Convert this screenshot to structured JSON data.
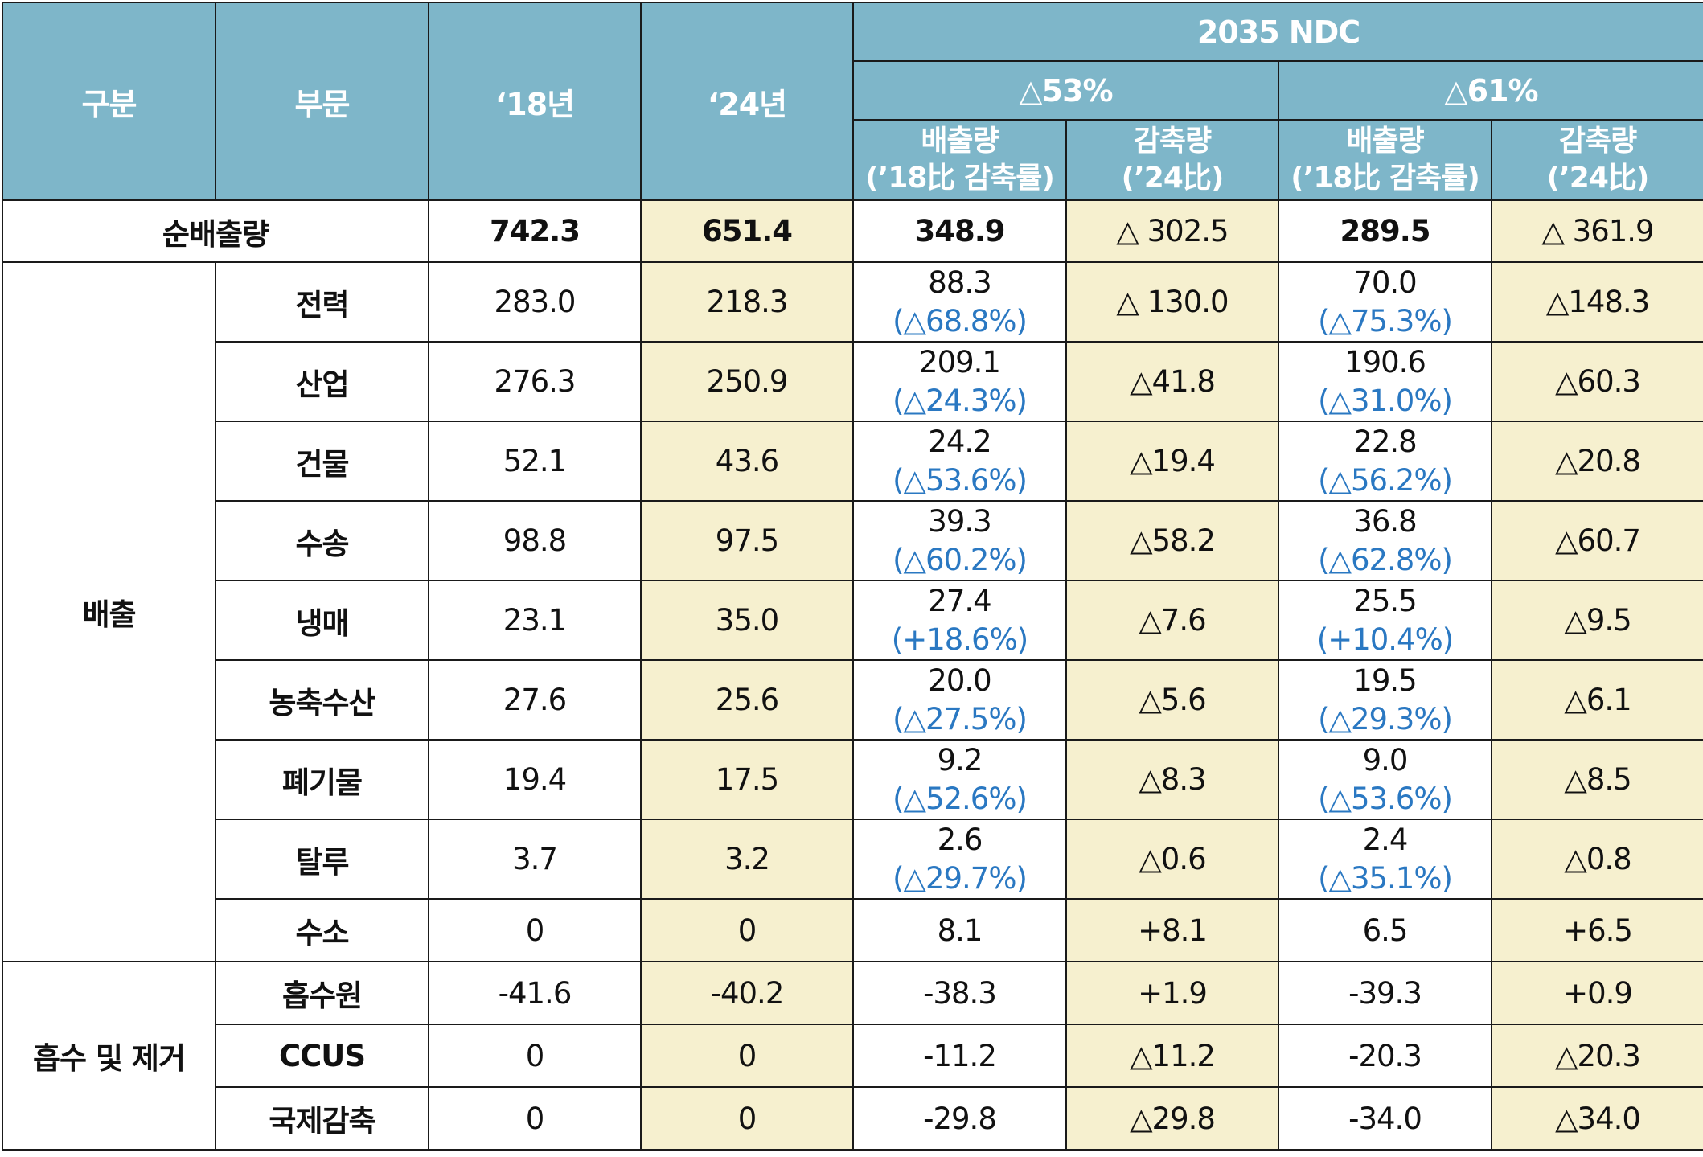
{
  "header": {
    "category": "구분",
    "sector": "부문",
    "y2018": "‘18년",
    "y2024": "‘24년",
    "ndc": "2035 NDC",
    "scenario53": "△53%",
    "scenario61": "△61%",
    "emissions_label_1": "배출량",
    "emissions_label_2": "(’18比 감축률)",
    "reduction_label_1": "감축량",
    "reduction_label_2": "(’24比)"
  },
  "net": {
    "label": "순배출량",
    "y2018": "742.3",
    "y2024": "651.4",
    "s53_emission": "348.9",
    "s53_reduction": "△ 302.5",
    "s61_emission": "289.5",
    "s61_reduction": "△ 361.9"
  },
  "groups": {
    "emission": "배출",
    "absorption": "흡수 및 제거"
  },
  "rows": [
    {
      "name": "전력",
      "y2018": "283.0",
      "y2024": "218.3",
      "e53": "88.3",
      "r53_rate": "(△68.8%)",
      "red53": "△ 130.0",
      "e61": "70.0",
      "r61_rate": "(△75.3%)",
      "red61": "△148.3"
    },
    {
      "name": "산업",
      "y2018": "276.3",
      "y2024": "250.9",
      "e53": "209.1",
      "r53_rate": "(△24.3%)",
      "red53": "△41.8",
      "e61": "190.6",
      "r61_rate": "(△31.0%)",
      "red61": "△60.3"
    },
    {
      "name": "건물",
      "y2018": "52.1",
      "y2024": "43.6",
      "e53": "24.2",
      "r53_rate": "(△53.6%)",
      "red53": "△19.4",
      "e61": "22.8",
      "r61_rate": "(△56.2%)",
      "red61": "△20.8"
    },
    {
      "name": "수송",
      "y2018": "98.8",
      "y2024": "97.5",
      "e53": "39.3",
      "r53_rate": "(△60.2%)",
      "red53": "△58.2",
      "e61": "36.8",
      "r61_rate": "(△62.8%)",
      "red61": "△60.7"
    },
    {
      "name": "냉매",
      "y2018": "23.1",
      "y2024": "35.0",
      "e53": "27.4",
      "r53_rate": "(+18.6%)",
      "red53": "△7.6",
      "e61": "25.5",
      "r61_rate": "(+10.4%)",
      "red61": "△9.5"
    },
    {
      "name": "농축수산",
      "y2018": "27.6",
      "y2024": "25.6",
      "e53": "20.0",
      "r53_rate": "(△27.5%)",
      "red53": "△5.6",
      "e61": "19.5",
      "r61_rate": "(△29.3%)",
      "red61": "△6.1"
    },
    {
      "name": "폐기물",
      "y2018": "19.4",
      "y2024": "17.5",
      "e53": "9.2",
      "r53_rate": "(△52.6%)",
      "red53": "△8.3",
      "e61": "9.0",
      "r61_rate": "(△53.6%)",
      "red61": "△8.5"
    },
    {
      "name": "탈루",
      "y2018": "3.7",
      "y2024": "3.2",
      "e53": "2.6",
      "r53_rate": "(△29.7%)",
      "red53": "△0.6",
      "e61": "2.4",
      "r61_rate": "(△35.1%)",
      "red61": "△0.8"
    },
    {
      "name": "수소",
      "y2018": "0",
      "y2024": "0",
      "e53": "8.1",
      "red53": "+8.1",
      "e61": "6.5",
      "red61": "+6.5"
    },
    {
      "name": "흡수원",
      "y2018": "-41.6",
      "y2024": "-40.2",
      "e53": "-38.3",
      "red53": "+1.9",
      "e61": "-39.3",
      "red61": "+0.9"
    },
    {
      "name": "CCUS",
      "y2018": "0",
      "y2024": "0",
      "e53": "-11.2",
      "red53": "△11.2",
      "e61": "-20.3",
      "red61": "△20.3"
    },
    {
      "name": "국제감축",
      "y2018": "0",
      "y2024": "0",
      "e53": "-29.8",
      "red53": "△29.8",
      "e61": "-34.0",
      "red61": "△34.0"
    }
  ]
}
